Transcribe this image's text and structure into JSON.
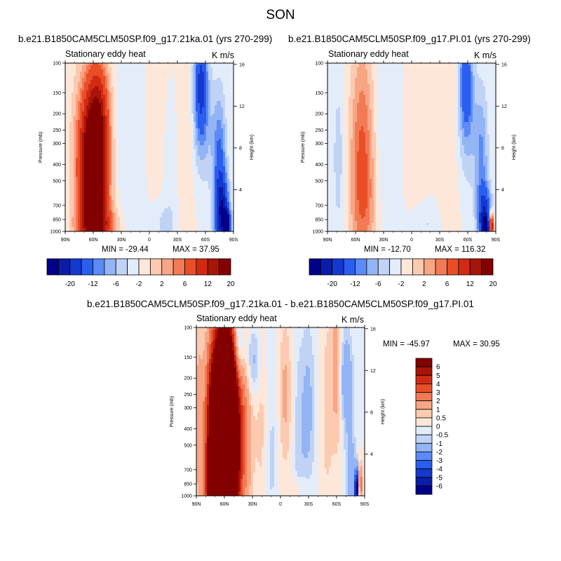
{
  "title": "SON",
  "chart_data": [
    {
      "type": "contour",
      "header": "b.e21.B1850CAM5CLM50SP.f09_g17.21ka.01 (yrs 270-299)",
      "label": "Stationary eddy heat",
      "units": "K m/s",
      "ylabel": "Pressure (mb)",
      "ylabel_right": "Height (km)",
      "x_ticks": [
        "90N",
        "60N",
        "30N",
        "0",
        "30S",
        "60S",
        "90S"
      ],
      "y_ticks": [
        "100",
        "150",
        "200",
        "250",
        "300",
        "400",
        "500",
        "700",
        "850",
        "1000"
      ],
      "y_right_ticks": [
        "16",
        "12",
        "8",
        "4"
      ],
      "min_label": "MIN = -29.44",
      "max_label": "MAX =  37.95",
      "colorbar_levels": [
        "-20",
        "-12",
        "-6",
        "-2",
        "2",
        "6",
        "12",
        "20"
      ],
      "blobs": [
        {
          "lat": 60,
          "p": 420,
          "lat_w": 10,
          "logp_w": 0.34,
          "value": 34
        },
        {
          "lat": 53,
          "p": 180,
          "lat_w": 7,
          "logp_w": 0.2,
          "value": 6
        },
        {
          "lat": 55,
          "p": 930,
          "lat_w": 14,
          "logp_w": 0.08,
          "value": 10
        },
        {
          "lat": 20,
          "p": 330,
          "lat_w": 10,
          "logp_w": 0.5,
          "value": -2
        },
        {
          "lat": -8,
          "p": 200,
          "lat_w": 9,
          "logp_w": 0.45,
          "value": 1.5
        },
        {
          "lat": -23,
          "p": 380,
          "lat_w": 7,
          "logp_w": 0.35,
          "value": -1.5
        },
        {
          "lat": -38,
          "p": 280,
          "lat_w": 7,
          "logp_w": 0.5,
          "value": 2
        },
        {
          "lat": -55,
          "p": 130,
          "lat_w": 5,
          "logp_w": 0.22,
          "value": -12
        },
        {
          "lat": -58,
          "p": 240,
          "lat_w": 8,
          "logp_w": 0.25,
          "value": -4
        },
        {
          "lat": -75,
          "p": 420,
          "lat_w": 5,
          "logp_w": 0.3,
          "value": -9
        },
        {
          "lat": -78,
          "p": 800,
          "lat_w": 5,
          "logp_w": 0.15,
          "value": -16
        },
        {
          "lat": -83,
          "p": 900,
          "lat_w": 2.5,
          "logp_w": 0.05,
          "value": -22
        },
        {
          "lat": 80,
          "p": 350,
          "lat_w": 6,
          "logp_w": 0.6,
          "value": 1
        },
        {
          "lat": -15,
          "p": 900,
          "lat_w": 10,
          "logp_w": 0.1,
          "value": -2.5
        }
      ]
    },
    {
      "type": "contour",
      "header": "b.e21.B1850CAM5CLM50SP.f09_g17.PI.01 (yrs 270-299)",
      "label": "Stationary eddy heat",
      "units": "K m/s",
      "ylabel": "Pressure (mb)",
      "ylabel_right": "Height (km)",
      "x_ticks": [
        "90N",
        "60N",
        "30N",
        "0",
        "30S",
        "60S",
        "90S"
      ],
      "y_ticks": [
        "100",
        "150",
        "200",
        "250",
        "300",
        "400",
        "500",
        "700",
        "850",
        "1000"
      ],
      "y_right_ticks": [
        "16",
        "12",
        "8",
        "4"
      ],
      "min_label": "MIN = -12.70",
      "max_label": "MAX = 116.32",
      "colorbar_levels": [
        "-20",
        "-12",
        "-6",
        "-2",
        "2",
        "6",
        "12",
        "20"
      ],
      "blobs": [
        {
          "lat": 53,
          "p": 320,
          "lat_w": 9,
          "logp_w": 0.45,
          "value": 8
        },
        {
          "lat": 50,
          "p": 750,
          "lat_w": 12,
          "logp_w": 0.25,
          "value": 3
        },
        {
          "lat": 78,
          "p": 380,
          "lat_w": 5,
          "logp_w": 0.4,
          "value": -3
        },
        {
          "lat": 28,
          "p": 350,
          "lat_w": 9,
          "logp_w": 0.5,
          "value": -2
        },
        {
          "lat": -8,
          "p": 220,
          "lat_w": 9,
          "logp_w": 0.5,
          "value": 1.5
        },
        {
          "lat": -40,
          "p": 300,
          "lat_w": 8,
          "logp_w": 0.5,
          "value": 2
        },
        {
          "lat": -58,
          "p": 125,
          "lat_w": 5,
          "logp_w": 0.2,
          "value": -10
        },
        {
          "lat": -60,
          "p": 250,
          "lat_w": 8,
          "logp_w": 0.25,
          "value": -4
        },
        {
          "lat": -75,
          "p": 380,
          "lat_w": 5,
          "logp_w": 0.3,
          "value": -6
        },
        {
          "lat": -78,
          "p": 820,
          "lat_w": 5,
          "logp_w": 0.12,
          "value": -14
        },
        {
          "lat": -80,
          "p": 960,
          "lat_w": 3,
          "logp_w": 0.04,
          "value": -20
        },
        {
          "lat": -85,
          "p": 930,
          "lat_w": 2,
          "logp_w": 0.05,
          "value": 25
        },
        {
          "lat": -15,
          "p": 900,
          "lat_w": 10,
          "logp_w": 0.1,
          "value": -2.5
        }
      ]
    },
    {
      "type": "contour",
      "header": "b.e21.B1850CAM5CLM50SP.f09_g17.21ka.01 - b.e21.B1850CAM5CLM50SP.f09_g17.PI.01",
      "label": "Stationary eddy heat",
      "units": "K m/s",
      "ylabel": "Pressure (mb)",
      "ylabel_right": "Height (km)",
      "x_ticks": [
        "90N",
        "60N",
        "30N",
        "0",
        "30S",
        "60S",
        "90S"
      ],
      "y_ticks": [
        "100",
        "150",
        "200",
        "250",
        "300",
        "400",
        "500",
        "700",
        "850",
        "1000"
      ],
      "y_right_ticks": [
        "16",
        "12",
        "8",
        "4"
      ],
      "min_label": "MIN = -45.97",
      "max_label": "MAX =  30.95",
      "colorbar_levels": [
        "6",
        "5",
        "4",
        "3",
        "2",
        "1",
        "0.5",
        "0",
        "-0.5",
        "-1",
        "-2",
        "-3",
        "-4",
        "-5",
        "-6"
      ],
      "blobs": [
        {
          "lat": 60,
          "p": 480,
          "lat_w": 9,
          "logp_w": 0.4,
          "value": 30
        },
        {
          "lat": 68,
          "p": 900,
          "lat_w": 8,
          "logp_w": 0.15,
          "value": 4
        },
        {
          "lat": 75,
          "p": 450,
          "lat_w": 6,
          "logp_w": 0.4,
          "value": 1.5
        },
        {
          "lat": 88,
          "p": 300,
          "lat_w": 3,
          "logp_w": 0.5,
          "value": 1
        },
        {
          "lat": 37,
          "p": 400,
          "lat_w": 5,
          "logp_w": 0.4,
          "value": 1.5
        },
        {
          "lat": 30,
          "p": 160,
          "lat_w": 6,
          "logp_w": 0.15,
          "value": -1.5
        },
        {
          "lat": 45,
          "p": 130,
          "lat_w": 4,
          "logp_w": 0.15,
          "value": -2.5
        },
        {
          "lat": 20,
          "p": 350,
          "lat_w": 6,
          "logp_w": 0.4,
          "value": 0.7
        },
        {
          "lat": 10,
          "p": 500,
          "lat_w": 5,
          "logp_w": 0.5,
          "value": -0.7
        },
        {
          "lat": -5,
          "p": 250,
          "lat_w": 5,
          "logp_w": 0.3,
          "value": 1.2
        },
        {
          "lat": -20,
          "p": 550,
          "lat_w": 5,
          "logp_w": 0.5,
          "value": -0.8
        },
        {
          "lat": -30,
          "p": 300,
          "lat_w": 5,
          "logp_w": 0.35,
          "value": -1.2
        },
        {
          "lat": -50,
          "p": 300,
          "lat_w": 4,
          "logp_w": 0.4,
          "value": 0.8
        },
        {
          "lat": -60,
          "p": 170,
          "lat_w": 4,
          "logp_w": 0.35,
          "value": 1.5
        },
        {
          "lat": -70,
          "p": 200,
          "lat_w": 5,
          "logp_w": 0.2,
          "value": -2
        },
        {
          "lat": -75,
          "p": 700,
          "lat_w": 4,
          "logp_w": 0.2,
          "value": -1.5
        },
        {
          "lat": -82,
          "p": 900,
          "lat_w": 2,
          "logp_w": 0.08,
          "value": -7
        },
        {
          "lat": -85,
          "p": 860,
          "lat_w": 1.5,
          "logp_w": 0.08,
          "value": 5
        },
        {
          "lat": -20,
          "p": 920,
          "lat_w": 8,
          "logp_w": 0.06,
          "value": 0.8
        }
      ]
    }
  ],
  "colors": {
    "panel_palette": [
      "#00008b",
      "#0a1ca8",
      "#1539cf",
      "#2a5ef0",
      "#5a8bf6",
      "#93b4f5",
      "#c0d3f5",
      "#e3ecf9",
      "#fde7d9",
      "#fbcab0",
      "#f8a584",
      "#f27a55",
      "#e94e27",
      "#d22a12",
      "#a81408",
      "#830000"
    ],
    "diff_palette": [
      "#00008b",
      "#0a1ca8",
      "#1539cf",
      "#2a5ef0",
      "#5a8bf6",
      "#93b4f5",
      "#c0d3f5",
      "#e3ecf9",
      "#fde7d9",
      "#fbcab0",
      "#f8a584",
      "#f27a55",
      "#e94e27",
      "#d22a12",
      "#a81408",
      "#830000"
    ]
  }
}
